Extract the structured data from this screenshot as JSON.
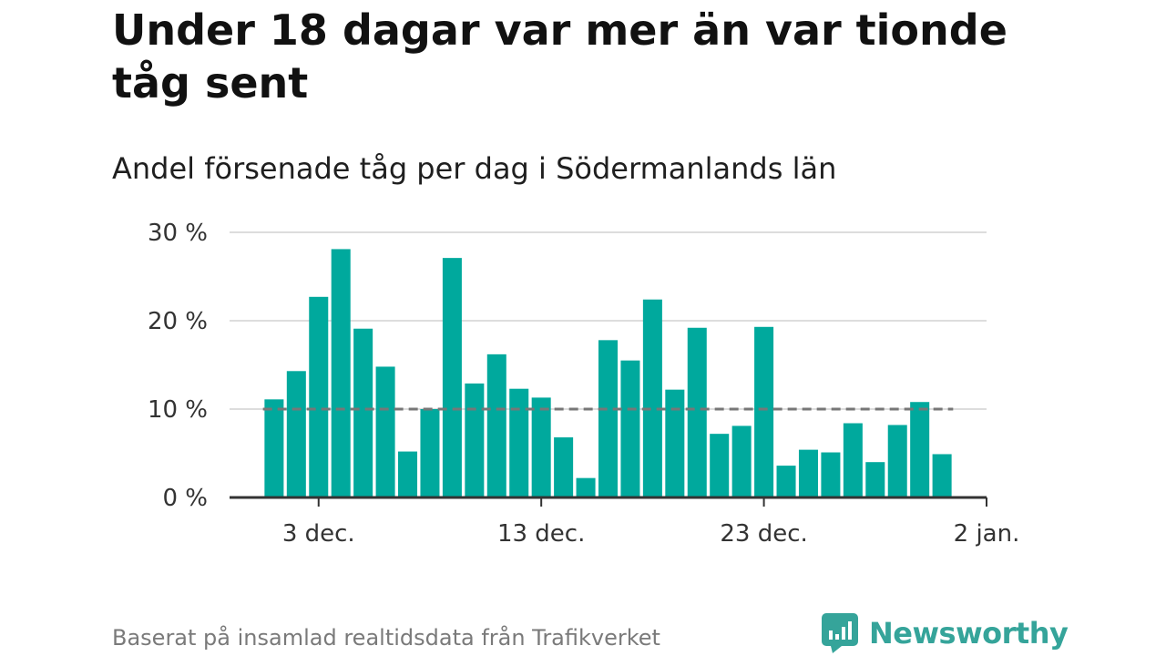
{
  "header": {
    "title": "Under 18 dagar var mer än var tionde tåg sent",
    "subtitle": "Andel försenade tåg per dag i Södermanlands län"
  },
  "footer": {
    "source": "Baserat på insamlad realtidsdata från Trafikverket",
    "brand": "Newsworthy"
  },
  "colors": {
    "bar": "#00a99d",
    "reference_line": "#777777",
    "grid": "#dddddd",
    "axis": "#333333",
    "brand": "#35a49a"
  },
  "chart_data": {
    "type": "bar",
    "x": [
      "2023-12-01",
      "2023-12-02",
      "2023-12-03",
      "2023-12-04",
      "2023-12-05",
      "2023-12-06",
      "2023-12-07",
      "2023-12-08",
      "2023-12-09",
      "2023-12-10",
      "2023-12-11",
      "2023-12-12",
      "2023-12-13",
      "2023-12-14",
      "2023-12-15",
      "2023-12-16",
      "2023-12-17",
      "2023-12-18",
      "2023-12-19",
      "2023-12-20",
      "2023-12-21",
      "2023-12-22",
      "2023-12-23",
      "2023-12-24",
      "2023-12-25",
      "2023-12-26",
      "2023-12-27",
      "2023-12-28",
      "2023-12-29",
      "2023-12-30",
      "2023-12-31"
    ],
    "values": [
      11.1,
      14.3,
      22.7,
      28.1,
      19.1,
      14.8,
      5.2,
      10.0,
      27.1,
      12.9,
      16.2,
      12.3,
      11.3,
      6.8,
      2.2,
      17.8,
      15.5,
      22.4,
      12.2,
      19.2,
      7.2,
      8.1,
      19.3,
      3.6,
      5.4,
      5.1,
      8.4,
      4.0,
      8.2,
      10.8,
      4.9
    ],
    "ylim": [
      0,
      30
    ],
    "y_ticks": [
      0,
      10,
      20,
      30
    ],
    "y_tick_labels": [
      "0 %",
      "10 %",
      "20 %",
      "30 %"
    ],
    "x_ticks": [
      "2023-12-03",
      "2023-12-13",
      "2023-12-23",
      "2024-01-02"
    ],
    "x_tick_labels": [
      "3 dec.",
      "13 dec.",
      "23 dec.",
      "2 jan."
    ],
    "x_range": [
      "2023-11-29",
      "2024-01-02"
    ],
    "reference_line": 10,
    "grid": true,
    "legend": "none",
    "xlabel": "",
    "ylabel": ""
  }
}
